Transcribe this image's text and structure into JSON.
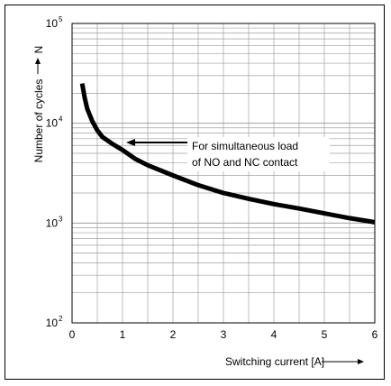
{
  "chart_data": {
    "type": "line",
    "title": "",
    "xlabel": "Switching current [A]",
    "ylabel": "Number of cycles",
    "ylabel_symbol": "N",
    "yscale": "log",
    "xlim": [
      0,
      6
    ],
    "ylim": [
      100,
      100000
    ],
    "grid": true,
    "xticks": [
      "0",
      "1",
      "2",
      "3",
      "4",
      "5",
      "6"
    ],
    "yticks": [
      {
        "base": "10",
        "exp": "2"
      },
      {
        "base": "10",
        "exp": "3"
      },
      {
        "base": "10",
        "exp": "4"
      },
      {
        "base": "10",
        "exp": "5"
      }
    ],
    "series": [
      {
        "x": [
          0.2,
          0.25,
          0.3,
          0.4,
          0.5,
          0.6,
          0.8,
          1.0,
          1.25,
          1.5,
          2.0,
          2.5,
          3.0,
          3.5,
          4.0,
          4.5,
          5.0,
          5.5,
          6.0
        ],
        "y": [
          25000,
          18000,
          14000,
          10500,
          8500,
          7300,
          6200,
          5400,
          4400,
          3800,
          3000,
          2400,
          2000,
          1750,
          1550,
          1400,
          1250,
          1120,
          1020
        ]
      }
    ],
    "annotation": {
      "lines": [
        "For simultaneous load",
        "of NO and NC contact"
      ],
      "points_to": {
        "x": 1.0,
        "y": 6000
      }
    }
  }
}
